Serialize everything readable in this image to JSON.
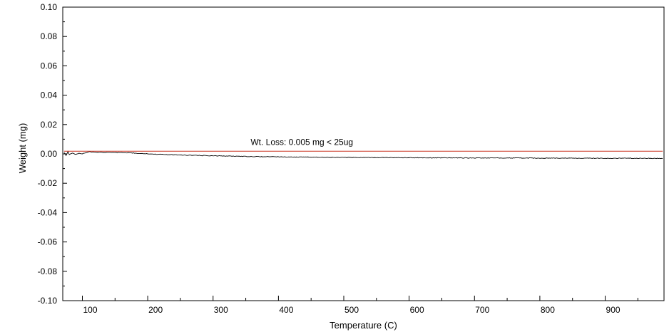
{
  "chart_data": {
    "type": "line",
    "xlabel": "Temperature (C)",
    "ylabel": "Weight (mg)",
    "xlim": [
      70,
      990
    ],
    "ylim": [
      -0.1,
      0.1
    ],
    "x_ticks": [
      100,
      200,
      300,
      400,
      500,
      600,
      700,
      800,
      900
    ],
    "x_tick_labels": [
      "100",
      "200",
      "300",
      "400",
      "500",
      "600",
      "700",
      "800",
      "900"
    ],
    "y_ticks": [
      0.1,
      0.08,
      0.06,
      0.04,
      0.02,
      0.0,
      -0.02,
      -0.04,
      -0.06,
      -0.08,
      -0.1
    ],
    "y_tick_labels": [
      "0.10",
      "0.08",
      "0.06",
      "0.04",
      "0.02",
      "0.00",
      "-0.02",
      "-0.04",
      "-0.06",
      "-0.08",
      "-0.10"
    ],
    "grid": false,
    "series": [
      {
        "color": "#000000",
        "x": [
          72,
          75,
          78,
          80,
          85,
          90,
          95,
          100,
          105,
          110,
          120,
          140,
          160,
          180,
          200,
          250,
          300,
          350,
          400,
          450,
          500,
          550,
          600,
          650,
          700,
          750,
          800,
          850,
          900,
          950,
          988
        ],
        "y": [
          0.001,
          -0.001,
          0.0015,
          -0.0005,
          0.0005,
          -0.0005,
          0.0005,
          0.0,
          0.0008,
          0.0015,
          0.0012,
          0.001,
          0.0008,
          0.0005,
          0.0,
          -0.0008,
          -0.0013,
          -0.0017,
          -0.002,
          -0.0022,
          -0.0024,
          -0.0025,
          -0.0026,
          -0.0027,
          -0.0028,
          -0.0028,
          -0.0029,
          -0.0029,
          -0.003,
          -0.003,
          -0.0031
        ]
      },
      {
        "color": "#cc3322",
        "x": [
          72,
          988
        ],
        "y": [
          0.0018,
          0.0018
        ]
      }
    ],
    "annotations": [
      {
        "text": "Wt. Loss: 0.005 mg < 25ug",
        "x": 450,
        "y": 0.0075
      }
    ]
  }
}
